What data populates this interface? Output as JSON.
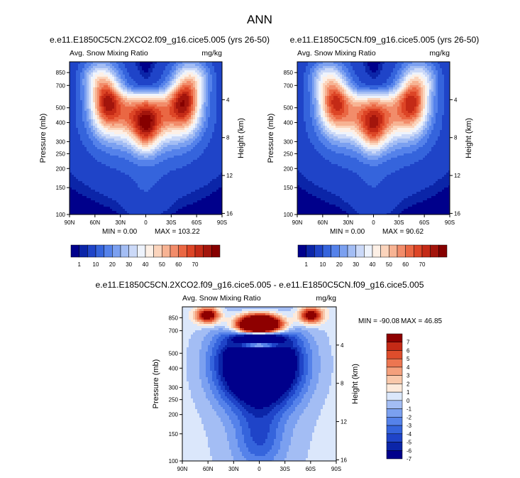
{
  "figure": {
    "title": "ANN",
    "colors": {
      "blues": [
        "#00008b",
        "#0b25a8",
        "#1f44c8",
        "#3564dc",
        "#5582ea",
        "#7ba0f0",
        "#a3bdf4",
        "#cbd9f8",
        "#eef3fc"
      ],
      "reds": [
        "#fdf0e6",
        "#fbd4bc",
        "#f7b393",
        "#f28c6a",
        "#ea6743",
        "#dd4526",
        "#c42a16",
        "#a3150c",
        "#860000"
      ]
    }
  },
  "chart_data": [
    {
      "type": "heatmap",
      "title": "e.e11.E1850C5CN.2XCO2.f09_g16.cice5.005 (yrs 26-50)",
      "variable": "Avg. Snow Mixing Ratio",
      "units": "mg/kg",
      "xlabel": "",
      "ylabel": "Pressure (mb)",
      "y2label": "Height (km)",
      "x_ticks": [
        "90N",
        "60N",
        "30N",
        "0",
        "30S",
        "60S",
        "90S"
      ],
      "x_range": [
        90,
        -90
      ],
      "y_ticks": [
        100,
        150,
        200,
        250,
        300,
        400,
        500,
        700,
        850
      ],
      "y_range": [
        1000,
        100
      ],
      "y_scale": "log",
      "y2_ticks": [
        16,
        12,
        8,
        4
      ],
      "min_label": "MIN =   0.00",
      "max_label": "MAX = 103.22",
      "colorbar_labels": [
        "1",
        "10",
        "20",
        "30",
        "40",
        "50",
        "60",
        "70"
      ]
    },
    {
      "type": "heatmap",
      "title": "e.e11.E1850C5CN.f09_g16.cice5.005 (yrs 26-50)",
      "variable": "Avg. Snow Mixing Ratio",
      "units": "mg/kg",
      "xlabel": "",
      "ylabel": "Pressure (mb)",
      "y2label": "Height (km)",
      "x_ticks": [
        "90N",
        "60N",
        "30N",
        "0",
        "30S",
        "60S",
        "90S"
      ],
      "x_range": [
        90,
        -90
      ],
      "y_ticks": [
        100,
        150,
        200,
        250,
        300,
        400,
        500,
        700,
        850
      ],
      "y_range": [
        1000,
        100
      ],
      "y_scale": "log",
      "y2_ticks": [
        16,
        12,
        8,
        4
      ],
      "min_label": "MIN =   0.00",
      "max_label": "MAX = 90.62",
      "colorbar_labels": [
        "1",
        "10",
        "20",
        "30",
        "40",
        "50",
        "60",
        "70"
      ]
    },
    {
      "type": "heatmap",
      "title": "e.e11.E1850C5CN.2XCO2.f09_g16.cice5.005 - e.e11.E1850C5CN.f09_g16.cice5.005",
      "variable": "Avg. Snow Mixing Ratio",
      "units": "mg/kg",
      "xlabel": "",
      "ylabel": "Pressure (mb)",
      "y2label": "Height (km)",
      "x_ticks": [
        "90N",
        "60N",
        "30N",
        "0",
        "30S",
        "60S",
        "90S"
      ],
      "x_range": [
        90,
        -90
      ],
      "y_ticks": [
        100,
        150,
        200,
        250,
        300,
        400,
        500,
        700,
        850
      ],
      "y_range": [
        1000,
        100
      ],
      "y_scale": "log",
      "y2_ticks": [
        16,
        12,
        8,
        4
      ],
      "min_label": "MIN = -90.08",
      "max_label": "MAX =  46.85",
      "colorbar_labels": [
        "7",
        "6",
        "5",
        "4",
        "3",
        "2",
        "1",
        "0",
        "-1",
        "-2",
        "-3",
        "-4",
        "-5",
        "-6",
        "-7"
      ]
    }
  ]
}
